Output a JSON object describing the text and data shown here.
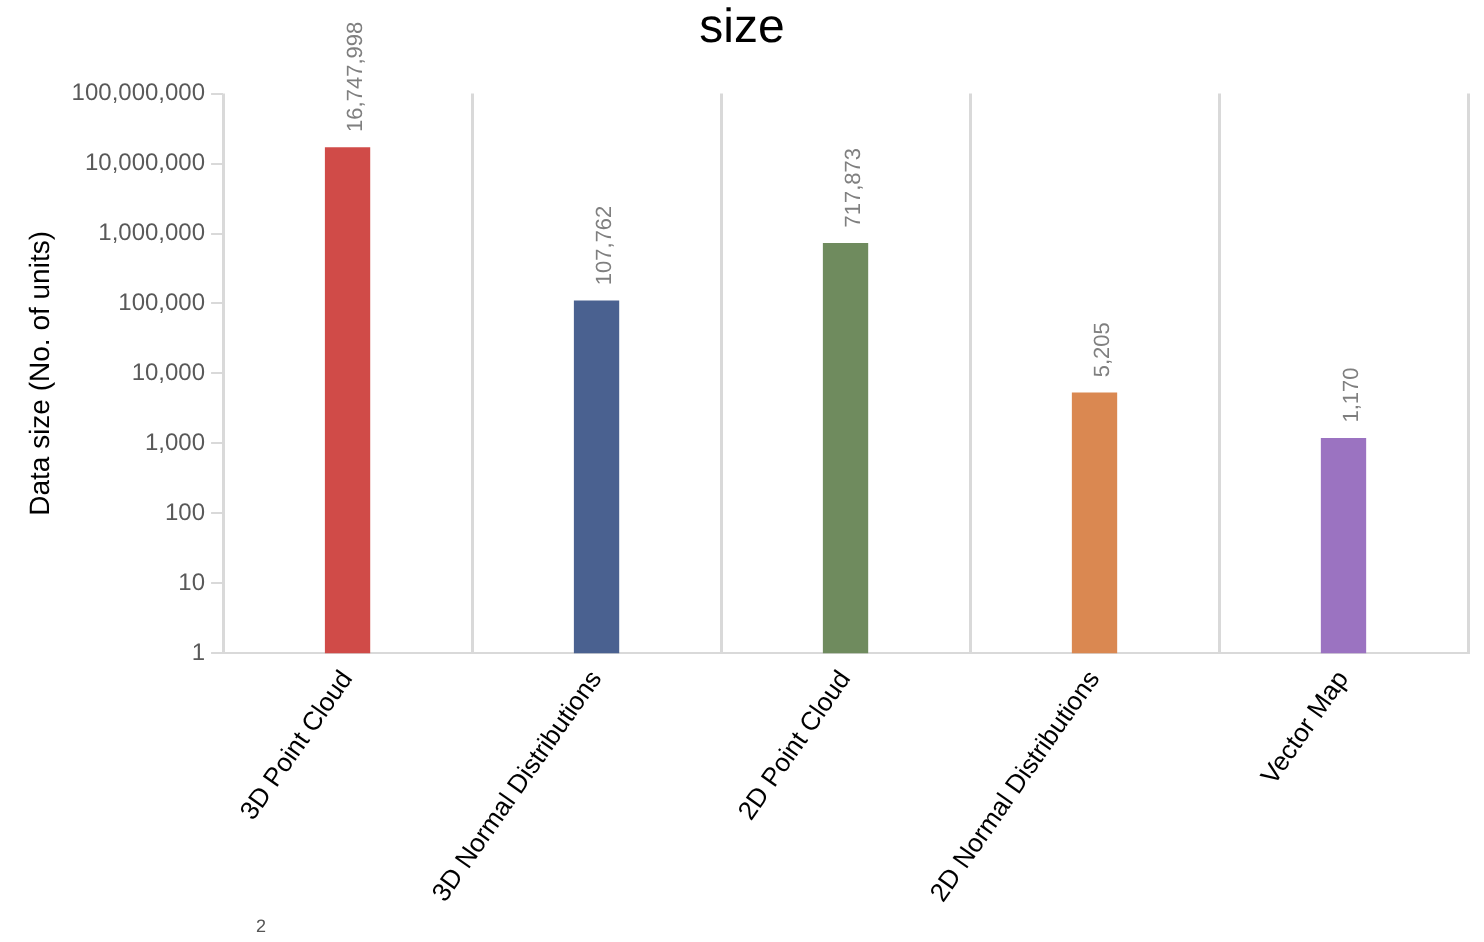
{
  "chart_data": {
    "type": "bar",
    "title": "size",
    "ylabel": "Data size (No. of units)",
    "categories": [
      "3D Point Cloud",
      "3D Normal Distributions",
      "2D Point Cloud",
      "2D Normal Distributions",
      "Vector Map"
    ],
    "values": [
      16747998,
      107762,
      717873,
      5205,
      1170
    ],
    "colors": [
      "#d04b48",
      "#4a6190",
      "#6f8b5e",
      "#da8851",
      "#9b73c1"
    ],
    "log": "y",
    "ylim": [
      1,
      100000000
    ],
    "yticks": [
      1,
      10,
      100,
      {
        "value": 1000,
        "label": "1,000"
      },
      {
        "value": 10000,
        "label": "10,000"
      },
      {
        "value": 100000,
        "label": "100,000"
      },
      {
        "value": 1000000,
        "label": "1,000,000"
      },
      {
        "value": 10000000,
        "label": "10,000,000"
      },
      {
        "value": 100000000,
        "label": "100,000,000"
      }
    ],
    "value_labels": [
      "16,747,998",
      "107,762",
      "717,873",
      "5,205",
      "1,170"
    ],
    "grid": "x",
    "legend": false,
    "annotations": [
      "2"
    ]
  }
}
